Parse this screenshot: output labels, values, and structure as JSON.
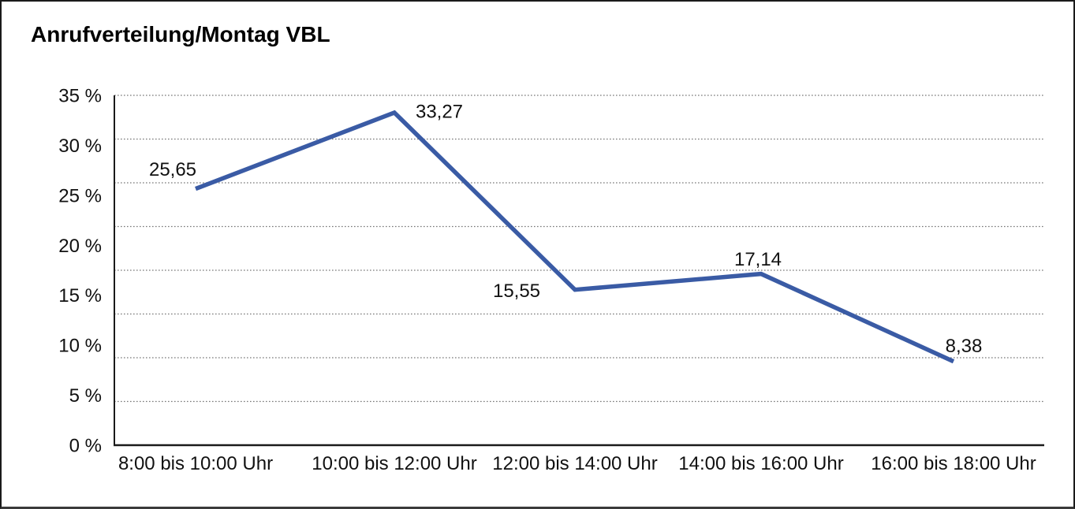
{
  "title": "Anrufverteilung/Montag VBL",
  "colors": {
    "line": "#3A5BA5",
    "axis": "#1a1a1a",
    "gridline": "#777777",
    "text": "#111111",
    "background": "#ffffff"
  },
  "chart_data": {
    "type": "line",
    "title": "Anrufverteilung/Montag VBL",
    "categories": [
      "8:00 bis 10:00 Uhr",
      "10:00 bis 12:00 Uhr",
      "12:00 bis 14:00 Uhr",
      "14:00 bis 16:00 Uhr",
      "16:00 bis 18:00 Uhr"
    ],
    "values": [
      25.65,
      33.27,
      15.55,
      17.14,
      8.38
    ],
    "value_labels": [
      "25,65",
      "33,27",
      "15,55",
      "17,14",
      "8,38"
    ],
    "series_name": "Anrufverteilung Montag VBL",
    "xlabel": "",
    "ylabel": "",
    "ylim": [
      0,
      35
    ],
    "y_tick_labels_top_to_bottom": [
      "35 %",
      "30 %",
      "25 %",
      "20 %",
      "15 %",
      "10 %",
      "5 %",
      "0 %"
    ],
    "y_tick_values_top_to_bottom": [
      35,
      30,
      25,
      20,
      15,
      10,
      5,
      0
    ],
    "grid": true,
    "gridline_style": "dotted",
    "dotted_gridline_rows": 8,
    "legend": "none",
    "line_width": 5.5
  }
}
